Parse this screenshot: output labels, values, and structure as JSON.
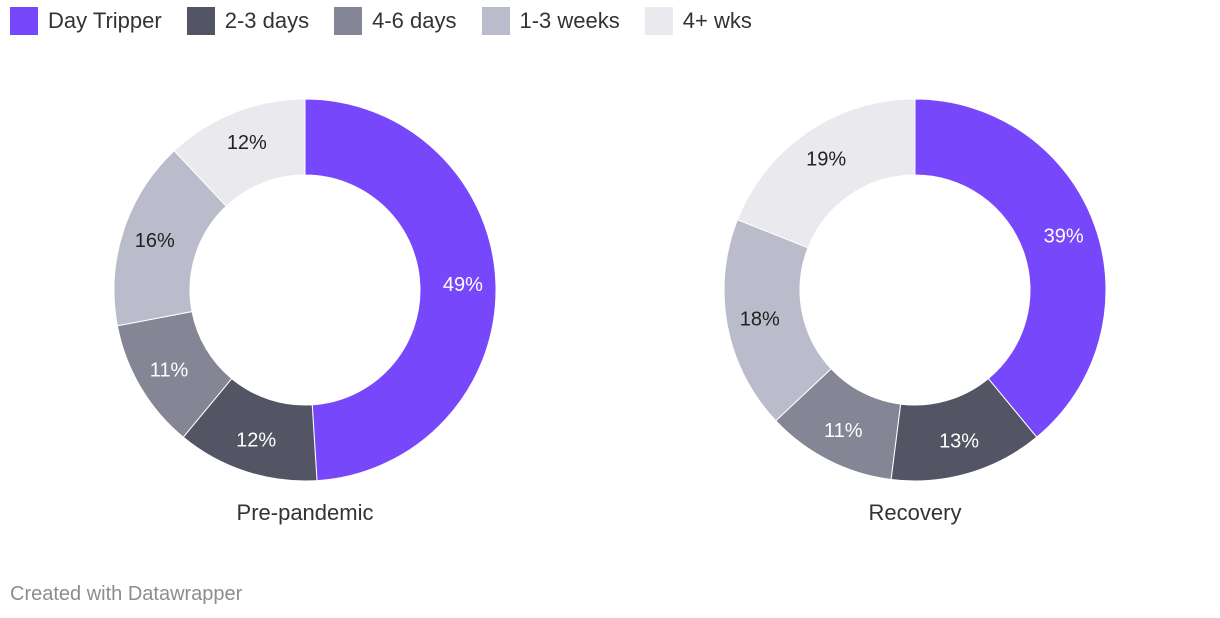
{
  "legend": {
    "items": [
      {
        "label": "Day Tripper",
        "color": "#7747fb"
      },
      {
        "label": "2-3 days",
        "color": "#535565"
      },
      {
        "label": "4-6 days",
        "color": "#848695"
      },
      {
        "label": "1-3 weeks",
        "color": "#bbbccb"
      },
      {
        "label": "4+ wks",
        "color": "#e9e9ee"
      }
    ]
  },
  "chart_data": [
    {
      "type": "pie",
      "title": "Pre-pandemic",
      "categories": [
        "Day Tripper",
        "2-3 days",
        "4-6 days",
        "1-3 weeks",
        "4+ wks"
      ],
      "values": [
        49,
        12,
        11,
        16,
        12
      ],
      "value_labels": [
        "49%",
        "12%",
        "11%",
        "16%",
        "12%"
      ],
      "label_colors": [
        "#ffffff",
        "#ffffff",
        "#ffffff",
        "#222222",
        "#222222"
      ]
    },
    {
      "type": "pie",
      "title": "Recovery",
      "categories": [
        "Day Tripper",
        "2-3 days",
        "4-6 days",
        "1-3 weeks",
        "4+ wks"
      ],
      "values": [
        39,
        13,
        11,
        18,
        19
      ],
      "value_labels": [
        "39%",
        "13%",
        "11%",
        "18%",
        "19%"
      ],
      "label_colors": [
        "#ffffff",
        "#ffffff",
        "#ffffff",
        "#222222",
        "#222222"
      ]
    }
  ],
  "footer": {
    "credit": "Created with Datawrapper"
  }
}
